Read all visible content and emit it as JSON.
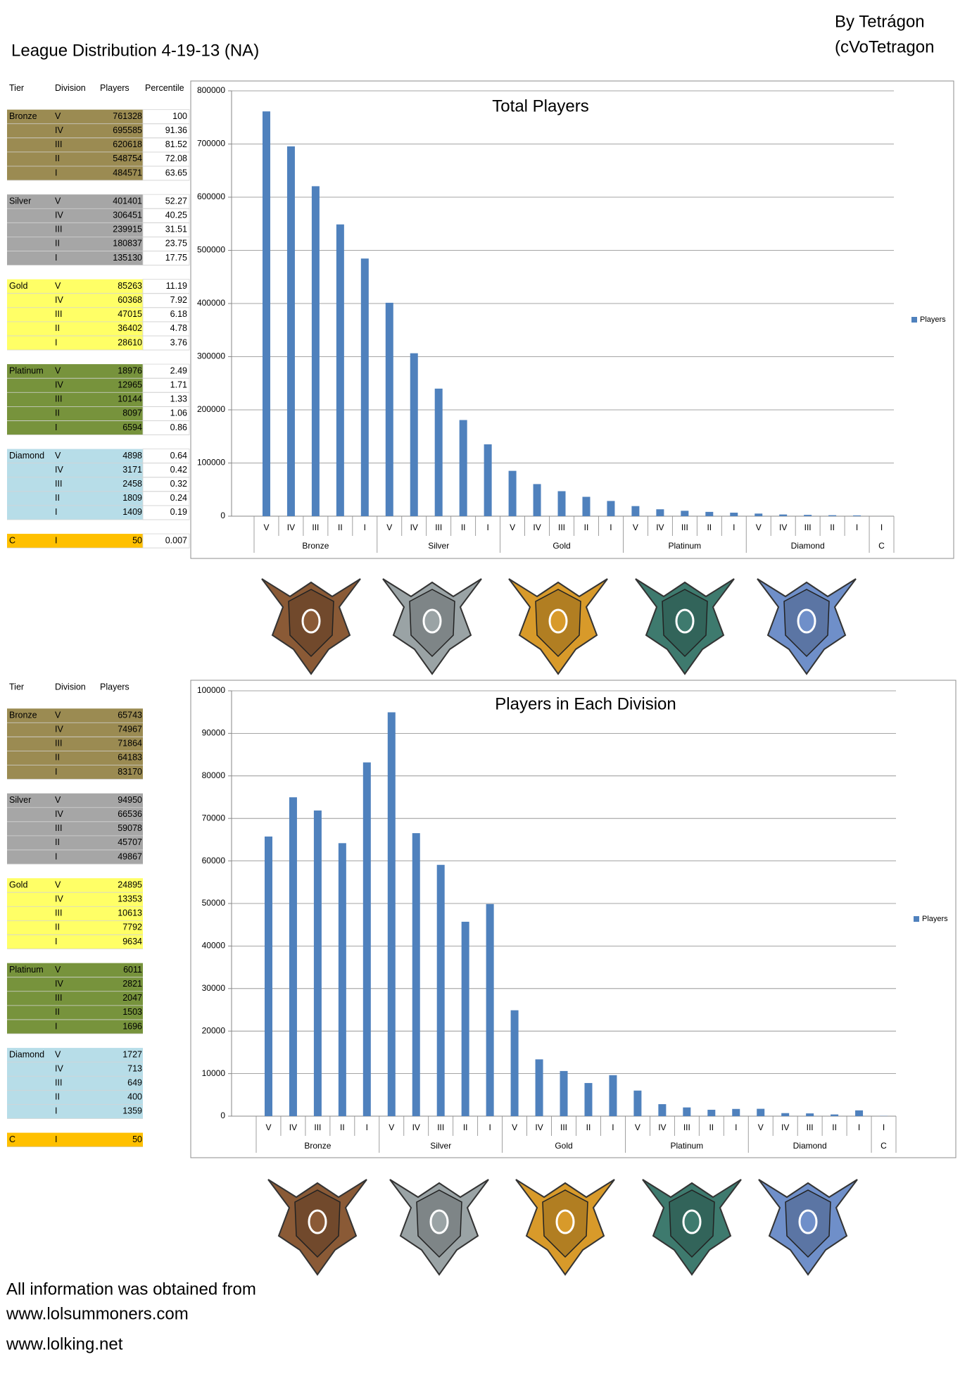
{
  "header": {
    "title": "League Distribution 4-19-13 (NA)",
    "author_line_1": "By Tetrágon",
    "author_line_2": "(cVoTetragon"
  },
  "table_1": {
    "columns": [
      "Tier",
      "Division",
      "Players",
      "Percentile"
    ],
    "groups": [
      {
        "tier": "Bronze",
        "color": "#9b8b52",
        "rows": [
          {
            "division": "V",
            "players": 761328,
            "percentile": 100
          },
          {
            "division": "IV",
            "players": 695585,
            "percentile": 91.36
          },
          {
            "division": "III",
            "players": 620618,
            "percentile": 81.52
          },
          {
            "division": "II",
            "players": 548754,
            "percentile": 72.08
          },
          {
            "division": "I",
            "players": 484571,
            "percentile": 63.65
          }
        ]
      },
      {
        "tier": "Silver",
        "color": "#a6a6a6",
        "rows": [
          {
            "division": "V",
            "players": 401401,
            "percentile": 52.27
          },
          {
            "division": "IV",
            "players": 306451,
            "percentile": 40.25
          },
          {
            "division": "III",
            "players": 239915,
            "percentile": 31.51
          },
          {
            "division": "II",
            "players": 180837,
            "percentile": 23.75
          },
          {
            "division": "I",
            "players": 135130,
            "percentile": 17.75
          }
        ]
      },
      {
        "tier": "Gold",
        "color": "#ffff66",
        "rows": [
          {
            "division": "V",
            "players": 85263,
            "percentile": 11.19
          },
          {
            "division": "IV",
            "players": 60368,
            "percentile": 7.92
          },
          {
            "division": "III",
            "players": 47015,
            "percentile": 6.18
          },
          {
            "division": "II",
            "players": 36402,
            "percentile": 4.78
          },
          {
            "division": "I",
            "players": 28610,
            "percentile": 3.76
          }
        ]
      },
      {
        "tier": "Platinum",
        "color": "#77933c",
        "rows": [
          {
            "division": "V",
            "players": 18976,
            "percentile": 2.49
          },
          {
            "division": "IV",
            "players": 12965,
            "percentile": 1.71
          },
          {
            "division": "III",
            "players": 10144,
            "percentile": 1.33
          },
          {
            "division": "II",
            "players": 8097,
            "percentile": 1.06
          },
          {
            "division": "I",
            "players": 6594,
            "percentile": 0.86
          }
        ]
      },
      {
        "tier": "Diamond",
        "color": "#b7dde8",
        "rows": [
          {
            "division": "V",
            "players": 4898,
            "percentile": 0.64
          },
          {
            "division": "IV",
            "players": 3171,
            "percentile": 0.42
          },
          {
            "division": "III",
            "players": 2458,
            "percentile": 0.32
          },
          {
            "division": "II",
            "players": 1809,
            "percentile": 0.24
          },
          {
            "division": "I",
            "players": 1409,
            "percentile": 0.19
          }
        ]
      },
      {
        "tier": "C",
        "color": "#ffc000",
        "rows": [
          {
            "division": "I",
            "players": 50,
            "percentile": 0.007
          }
        ]
      }
    ]
  },
  "table_2": {
    "columns": [
      "Tier",
      "Division",
      "Players"
    ],
    "groups": [
      {
        "tier": "Bronze",
        "color": "#9b8b52",
        "rows": [
          {
            "division": "V",
            "players": 65743
          },
          {
            "division": "IV",
            "players": 74967
          },
          {
            "division": "III",
            "players": 71864
          },
          {
            "division": "II",
            "players": 64183
          },
          {
            "division": "I",
            "players": 83170
          }
        ]
      },
      {
        "tier": "Silver",
        "color": "#a6a6a6",
        "rows": [
          {
            "division": "V",
            "players": 94950
          },
          {
            "division": "IV",
            "players": 66536
          },
          {
            "division": "III",
            "players": 59078
          },
          {
            "division": "II",
            "players": 45707
          },
          {
            "division": "I",
            "players": 49867
          }
        ]
      },
      {
        "tier": "Gold",
        "color": "#ffff66",
        "rows": [
          {
            "division": "V",
            "players": 24895
          },
          {
            "division": "IV",
            "players": 13353
          },
          {
            "division": "III",
            "players": 10613
          },
          {
            "division": "II",
            "players": 7792
          },
          {
            "division": "I",
            "players": 9634
          }
        ]
      },
      {
        "tier": "Platinum",
        "color": "#77933c",
        "rows": [
          {
            "division": "V",
            "players": 6011
          },
          {
            "division": "IV",
            "players": 2821
          },
          {
            "division": "III",
            "players": 2047
          },
          {
            "division": "II",
            "players": 1503
          },
          {
            "division": "I",
            "players": 1696
          }
        ]
      },
      {
        "tier": "Diamond",
        "color": "#b7dde8",
        "rows": [
          {
            "division": "V",
            "players": 1727
          },
          {
            "division": "IV",
            "players": 713
          },
          {
            "division": "III",
            "players": 649
          },
          {
            "division": "II",
            "players": 400
          },
          {
            "division": "I",
            "players": 1359
          }
        ]
      },
      {
        "tier": "C",
        "color": "#ffc000",
        "rows": [
          {
            "division": "I",
            "players": 50
          }
        ]
      }
    ]
  },
  "chart_data": [
    {
      "type": "bar",
      "title": "Total Players",
      "category_groups": [
        {
          "label": "Bronze",
          "categories": [
            "V",
            "IV",
            "III",
            "II",
            "I"
          ]
        },
        {
          "label": "Silver",
          "categories": [
            "V",
            "IV",
            "III",
            "II",
            "I"
          ]
        },
        {
          "label": "Gold",
          "categories": [
            "V",
            "IV",
            "III",
            "II",
            "I"
          ]
        },
        {
          "label": "Platinum",
          "categories": [
            "V",
            "IV",
            "III",
            "II",
            "I"
          ]
        },
        {
          "label": "Diamond",
          "categories": [
            "V",
            "IV",
            "III",
            "II",
            "I"
          ]
        },
        {
          "label": "C",
          "categories": [
            "I"
          ]
        }
      ],
      "series": [
        {
          "name": "Players",
          "color": "#4f81bd",
          "values": [
            761328,
            695585,
            620618,
            548754,
            484571,
            401401,
            306451,
            239915,
            180837,
            135130,
            85263,
            60368,
            47015,
            36402,
            28610,
            18976,
            12965,
            10144,
            8097,
            6594,
            4898,
            3171,
            2458,
            1809,
            1409,
            50
          ]
        }
      ],
      "ylim": [
        0,
        800000
      ],
      "yticks": [
        0,
        100000,
        200000,
        300000,
        400000,
        500000,
        600000,
        700000,
        800000
      ],
      "grid": true,
      "legend": "right"
    },
    {
      "type": "bar",
      "title": "Players in Each Division",
      "category_groups": [
        {
          "label": "Bronze",
          "categories": [
            "V",
            "IV",
            "III",
            "II",
            "I"
          ]
        },
        {
          "label": "Silver",
          "categories": [
            "V",
            "IV",
            "III",
            "II",
            "I"
          ]
        },
        {
          "label": "Gold",
          "categories": [
            "V",
            "IV",
            "III",
            "II",
            "I"
          ]
        },
        {
          "label": "Platinum",
          "categories": [
            "V",
            "IV",
            "III",
            "II",
            "I"
          ]
        },
        {
          "label": "Diamond",
          "categories": [
            "V",
            "IV",
            "III",
            "II",
            "I"
          ]
        },
        {
          "label": "C",
          "categories": [
            "I"
          ]
        }
      ],
      "series": [
        {
          "name": "Players",
          "color": "#4f81bd",
          "values": [
            65743,
            74967,
            71864,
            64183,
            83170,
            94950,
            66536,
            59078,
            45707,
            49867,
            24895,
            13353,
            10613,
            7792,
            9634,
            6011,
            2821,
            2047,
            1503,
            1696,
            1727,
            713,
            649,
            400,
            1359,
            50
          ]
        }
      ],
      "ylim": [
        0,
        100000
      ],
      "yticks": [
        0,
        10000,
        20000,
        30000,
        40000,
        50000,
        60000,
        70000,
        80000,
        90000,
        100000
      ],
      "grid": true,
      "legend": "right"
    }
  ],
  "footer": {
    "line_1": "All information was obtained from",
    "line_2": "www.lolsummoners.com",
    "line_3": "www.lolking.net"
  }
}
